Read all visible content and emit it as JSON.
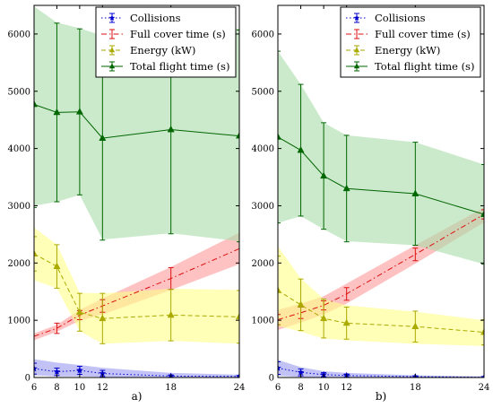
{
  "chart_data": [
    {
      "type": "line",
      "panel_label": "a)",
      "x": [
        6,
        8,
        10,
        12,
        18,
        24
      ],
      "xlim": [
        6,
        24
      ],
      "ylim": [
        0,
        6500
      ],
      "x_ticks": [
        6,
        8,
        10,
        12,
        18,
        24
      ],
      "y_ticks": [
        0,
        1000,
        2000,
        3000,
        4000,
        5000,
        6000
      ],
      "grid": false,
      "legend_position": "top-right",
      "series": [
        {
          "name": "Collisions",
          "color": "#0000cc",
          "band_color": "#9a9af0",
          "marker": "star",
          "linestyle": "dotted",
          "values": [
            155,
            100,
            125,
            70,
            25,
            20
          ],
          "err": [
            95,
            65,
            70,
            55,
            20,
            15
          ],
          "band_upper": [
            320,
            260,
            220,
            170,
            80,
            50
          ],
          "band_lower": [
            40,
            20,
            20,
            10,
            0,
            0
          ]
        },
        {
          "name": "Full cover time (s)",
          "color": "#dd1111",
          "band_color": "#ff9999",
          "marker": "none",
          "linestyle": "dashdot",
          "values": [
            720,
            860,
            1090,
            1250,
            1730,
            2250
          ],
          "err": [
            0,
            90,
            80,
            110,
            190,
            0
          ],
          "band_upper": [
            770,
            920,
            1180,
            1380,
            1930,
            2530
          ],
          "band_lower": [
            650,
            800,
            990,
            1100,
            1530,
            1980
          ]
        },
        {
          "name": "Energy (kW)",
          "color": "#aaaa00",
          "band_color": "#ffff88",
          "marker": "triangle",
          "linestyle": "dashed",
          "values": [
            2160,
            1940,
            1140,
            1030,
            1090,
            1060
          ],
          "err": [
            300,
            380,
            330,
            440,
            450,
            460
          ],
          "band_upper": [
            2620,
            2320,
            1480,
            1470,
            1550,
            1530
          ],
          "band_lower": [
            1700,
            1560,
            810,
            590,
            640,
            590
          ]
        },
        {
          "name": "Total flight time (s)",
          "color": "#006600",
          "band_color": "#a8dca8",
          "marker": "triangle",
          "linestyle": "solid",
          "values": [
            4770,
            4630,
            4640,
            4180,
            4330,
            4220
          ],
          "err": [
            1800,
            1560,
            1450,
            1780,
            1820,
            1850
          ],
          "band_upper": [
            6480,
            6200,
            6100,
            5970,
            6140,
            6090
          ],
          "band_lower": [
            3000,
            3070,
            3190,
            2410,
            2520,
            2380
          ]
        }
      ]
    },
    {
      "type": "line",
      "panel_label": "b)",
      "x": [
        6,
        8,
        10,
        12,
        18,
        24
      ],
      "xlim": [
        6,
        24
      ],
      "ylim": [
        0,
        6500
      ],
      "x_ticks": [
        6,
        8,
        10,
        12,
        18,
        24
      ],
      "y_ticks": [
        0,
        1000,
        2000,
        3000,
        4000,
        5000,
        6000
      ],
      "grid": false,
      "legend_position": "top-right",
      "series": [
        {
          "name": "Collisions",
          "color": "#0000cc",
          "band_color": "#9a9af0",
          "marker": "star",
          "linestyle": "dotted",
          "values": [
            165,
            90,
            50,
            35,
            15,
            5
          ],
          "err": [
            110,
            60,
            35,
            25,
            10,
            5
          ],
          "band_upper": [
            310,
            180,
            110,
            80,
            40,
            20
          ],
          "band_lower": [
            30,
            10,
            0,
            0,
            0,
            0
          ]
        },
        {
          "name": "Full cover time (s)",
          "color": "#dd1111",
          "band_color": "#ff9999",
          "marker": "none",
          "linestyle": "dashdot",
          "values": [
            1010,
            1130,
            1260,
            1460,
            2150,
            2850
          ],
          "err": [
            90,
            100,
            80,
            110,
            110,
            80
          ],
          "band_upper": [
            1180,
            1290,
            1420,
            1640,
            2310,
            2970
          ],
          "band_lower": [
            830,
            960,
            1100,
            1290,
            1990,
            2710
          ]
        },
        {
          "name": "Energy (kW)",
          "color": "#aaaa00",
          "band_color": "#ffff88",
          "marker": "triangle",
          "linestyle": "dashed",
          "values": [
            1520,
            1270,
            1030,
            950,
            890,
            790
          ],
          "err": [
            600,
            450,
            340,
            280,
            270,
            220
          ],
          "band_upper": [
            2290,
            1730,
            1370,
            1260,
            1150,
            1000
          ],
          "band_lower": [
            900,
            800,
            680,
            650,
            590,
            550
          ]
        },
        {
          "name": "Total flight time (s)",
          "color": "#006600",
          "band_color": "#a8dca8",
          "marker": "triangle",
          "linestyle": "solid",
          "values": [
            4200,
            3970,
            3520,
            3300,
            3210,
            2850
          ],
          "err": [
            1500,
            1150,
            930,
            930,
            900,
            870
          ],
          "band_upper": [
            5700,
            5120,
            4450,
            4230,
            4110,
            3720
          ],
          "band_lower": [
            2700,
            2820,
            2590,
            2380,
            2310,
            1980
          ]
        }
      ]
    }
  ]
}
